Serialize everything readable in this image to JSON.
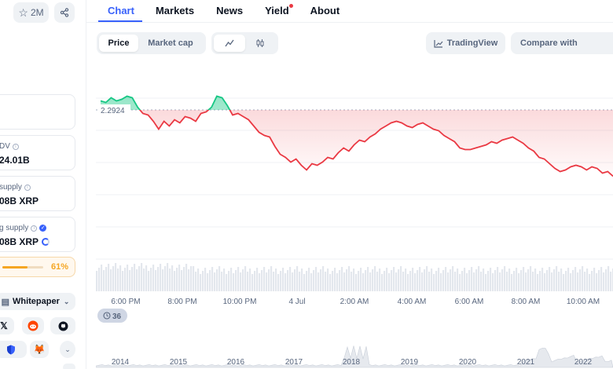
{
  "left_panel": {
    "watchlist_count": "2M",
    "cards": [
      {
        "label": "",
        "value": ""
      },
      {
        "label": "DV",
        "value": "24.01B"
      },
      {
        "label": "supply",
        "value": "08B XRP"
      },
      {
        "label": "g supply",
        "value": "08B XRP"
      }
    ],
    "progress_percent": "61%",
    "progress_fraction": 0.61,
    "whitepaper_label": "Whitepaper"
  },
  "tabs": [
    "Chart",
    "Markets",
    "News",
    "Yield",
    "About"
  ],
  "toolbar": {
    "price_label": "Price",
    "marketcap_label": "Market cap",
    "tradingview_label": "TradingView",
    "compare_label": "Compare with"
  },
  "chart_data": {
    "type": "area",
    "reference_price": 2.2924,
    "reference_label": "2.2924",
    "y_values": [
      2.35,
      2.34,
      2.37,
      2.35,
      2.36,
      2.38,
      2.37,
      2.31,
      2.27,
      2.26,
      2.22,
      2.17,
      2.22,
      2.19,
      2.23,
      2.21,
      2.25,
      2.24,
      2.22,
      2.27,
      2.28,
      2.31,
      2.38,
      2.37,
      2.32,
      2.26,
      2.27,
      2.25,
      2.23,
      2.19,
      2.15,
      2.13,
      2.12,
      2.06,
      2.01,
      1.99,
      1.96,
      1.98,
      1.94,
      1.91,
      1.95,
      1.94,
      1.96,
      1.99,
      1.98,
      2.02,
      2.05,
      2.03,
      2.07,
      2.1,
      2.09,
      2.12,
      2.14,
      2.17,
      2.19,
      2.21,
      2.22,
      2.21,
      2.19,
      2.18,
      2.2,
      2.21,
      2.19,
      2.17,
      2.16,
      2.13,
      2.11,
      2.09,
      2.05,
      2.04,
      2.04,
      2.05,
      2.06,
      2.07,
      2.09,
      2.08,
      2.1,
      2.11,
      2.12,
      2.1,
      2.08,
      2.05,
      2.03,
      1.99,
      1.98,
      1.95,
      1.92,
      1.9,
      1.91,
      1.93,
      1.94,
      1.93,
      1.91,
      1.93,
      1.92,
      1.89,
      1.9,
      1.87
    ],
    "time_labels": [
      "6:00 PM",
      "8:00 PM",
      "10:00 PM",
      "4 Jul",
      "2:00 AM",
      "4:00 AM",
      "6:00 AM",
      "8:00 AM",
      "10:00 AM"
    ],
    "year_labels": [
      "2014",
      "2015",
      "2016",
      "2017",
      "2018",
      "2019",
      "2020",
      "2021",
      "2022"
    ],
    "up_color": "#16c784",
    "down_color": "#ea3943"
  },
  "badge_count": "36"
}
